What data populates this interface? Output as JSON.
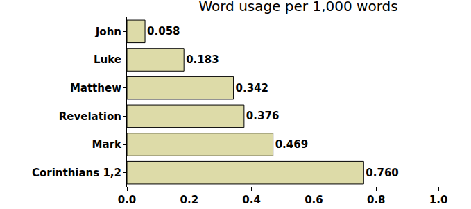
{
  "chart_data": {
    "type": "bar",
    "orientation": "horizontal",
    "title": "Word usage per 1,000 words",
    "categories": [
      "John",
      "Luke",
      "Matthew",
      "Revelation",
      "Mark",
      "Corinthians 1,2"
    ],
    "values": [
      0.058,
      0.183,
      0.342,
      0.376,
      0.469,
      0.76
    ],
    "value_labels": [
      "0.058",
      "0.183",
      "0.342",
      "0.376",
      "0.469",
      "0.760"
    ],
    "data_labels": true,
    "color": "#dddba8",
    "xlim": [
      0,
      1.1
    ],
    "xticks": [
      {
        "value": 0,
        "label": "0.0"
      },
      0.2,
      0.4,
      0.6,
      0.8,
      {
        "value": 1,
        "label": "1.0"
      }
    ],
    "grid": false
  }
}
